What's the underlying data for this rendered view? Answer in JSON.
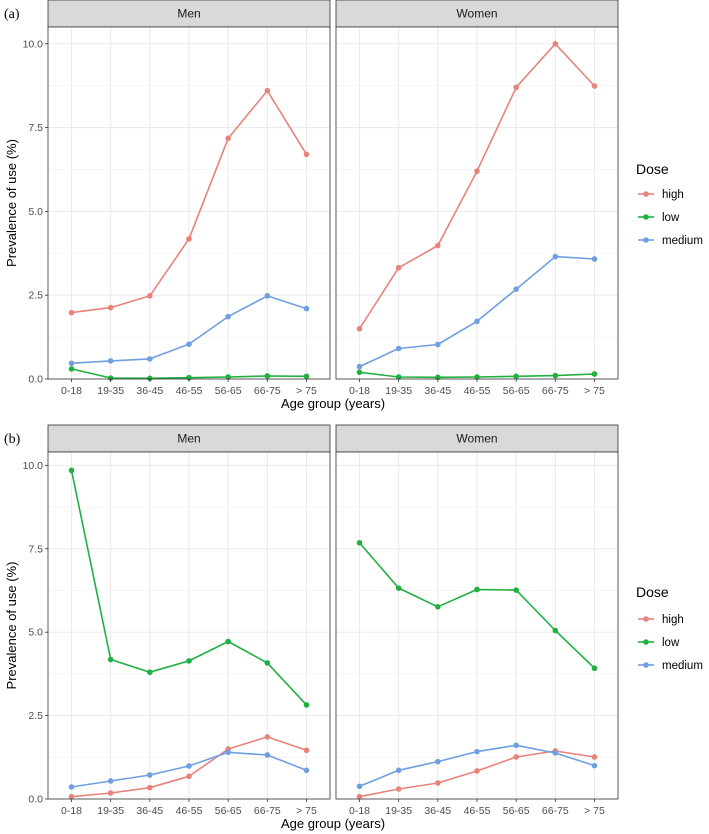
{
  "colors": {
    "high": "#e8837b",
    "low": "#1fb040",
    "medium": "#6f9fe0",
    "strip": "#d9d9d9",
    "grid": "#ebebeb",
    "border": "#333333"
  },
  "chart_data": [
    {
      "type": "line",
      "tag": "(a)",
      "xlabel": "Age group (years)",
      "ylabel": "Prevalence of use (%)",
      "ylim": [
        0,
        10.5
      ],
      "yticks": [
        "0.0",
        "2.5",
        "5.0",
        "7.5",
        "10.0"
      ],
      "ytick_values": [
        0,
        2.5,
        5,
        7.5,
        10
      ],
      "categories": [
        "0-18",
        "19-35",
        "36-45",
        "46-55",
        "56-65",
        "66-75",
        "> 75"
      ],
      "legend": {
        "title": "Dose",
        "entries": [
          "high",
          "low",
          "medium"
        ]
      },
      "facets": [
        {
          "label": "Men",
          "series": [
            {
              "name": "high",
              "values": [
                1.98,
                2.13,
                2.48,
                4.18,
                7.18,
                8.6,
                6.7
              ]
            },
            {
              "name": "low",
              "values": [
                0.3,
                0.03,
                0.02,
                0.04,
                0.06,
                0.09,
                0.08
              ]
            },
            {
              "name": "medium",
              "values": [
                0.47,
                0.54,
                0.6,
                1.04,
                1.86,
                2.48,
                2.1
              ]
            }
          ]
        },
        {
          "label": "Women",
          "series": [
            {
              "name": "high",
              "values": [
                1.5,
                3.32,
                3.98,
                6.2,
                8.7,
                10.0,
                8.74
              ]
            },
            {
              "name": "low",
              "values": [
                0.2,
                0.06,
                0.05,
                0.06,
                0.08,
                0.1,
                0.15
              ]
            },
            {
              "name": "medium",
              "values": [
                0.37,
                0.91,
                1.03,
                1.72,
                2.68,
                3.65,
                3.58
              ]
            }
          ]
        }
      ]
    },
    {
      "type": "line",
      "tag": "(b)",
      "xlabel": "Age group (years)",
      "ylabel": "Prevalence of use (%)",
      "ylim": [
        0,
        10.4
      ],
      "yticks": [
        "0.0",
        "2.5",
        "5.0",
        "7.5",
        "10.0"
      ],
      "ytick_values": [
        0,
        2.5,
        5,
        7.5,
        10
      ],
      "categories": [
        "0-18",
        "19-35",
        "36-45",
        "46-55",
        "56-65",
        "66-75",
        "> 75"
      ],
      "legend": {
        "title": "Dose",
        "entries": [
          "high",
          "low",
          "medium"
        ]
      },
      "facets": [
        {
          "label": "Men",
          "series": [
            {
              "name": "high",
              "values": [
                0.07,
                0.18,
                0.34,
                0.68,
                1.5,
                1.86,
                1.46
              ]
            },
            {
              "name": "low",
              "values": [
                9.85,
                4.18,
                3.8,
                4.14,
                4.72,
                4.08,
                2.82
              ]
            },
            {
              "name": "medium",
              "values": [
                0.36,
                0.54,
                0.72,
                0.99,
                1.4,
                1.32,
                0.86
              ]
            }
          ]
        },
        {
          "label": "Women",
          "series": [
            {
              "name": "high",
              "values": [
                0.07,
                0.3,
                0.48,
                0.84,
                1.26,
                1.44,
                1.26
              ]
            },
            {
              "name": "low",
              "values": [
                7.68,
                6.32,
                5.76,
                6.28,
                6.26,
                5.05,
                3.92
              ]
            },
            {
              "name": "medium",
              "values": [
                0.38,
                0.86,
                1.12,
                1.42,
                1.61,
                1.38,
                1.0
              ]
            }
          ]
        }
      ]
    }
  ]
}
